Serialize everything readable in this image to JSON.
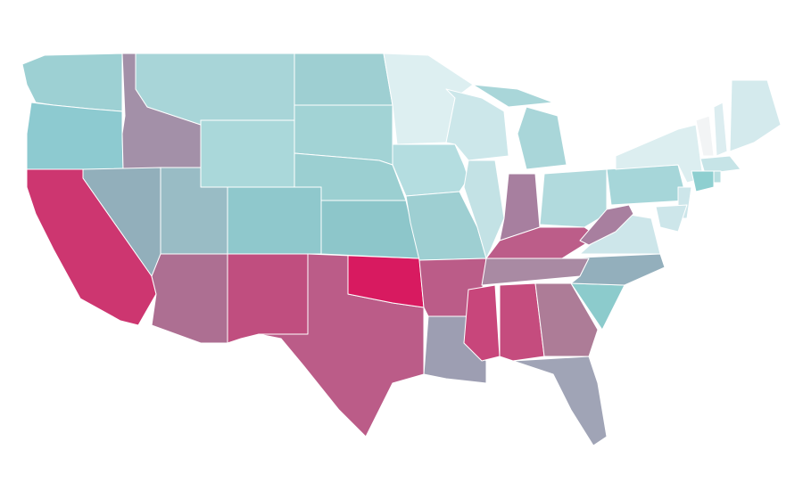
{
  "map": {
    "fills": [
      "#9dd0d3",
      "#8dcad0",
      "#a390a8",
      "#a8d5d8",
      "#aad8da",
      "#9ecfd2",
      "#a2d3d5",
      "#9bcfd1",
      "#8fc8cc",
      "#99bcc5",
      "#92afbb",
      "#cd3670",
      "#ad6f92",
      "#c04e7f",
      "#bb5c88",
      "#d81a60",
      "#8dc6ca",
      "#ddeff1",
      "#b4dde0",
      "#9ecfd2",
      "#bb5c88",
      "#9d9eb2",
      "#cce7ea",
      "#c3e2e5",
      "#a9d6d9",
      "#a9d6d9",
      "#a77f9f",
      "#b1dadd",
      "#bc5d89",
      "#a98aa3",
      "#c8467b",
      "#c54c7e",
      "#ad7c97",
      "#a0a4b6",
      "#8ccbcc",
      "#93afbc",
      "#cde6ea",
      "#a87f9f",
      "#a6d6d9",
      "#dceef0",
      "#f2f4f5",
      "#dcedf0",
      "#d4eaed",
      "#c6e4e7",
      "#8ecfd0",
      "#b9dfe1",
      "#cde6ea",
      "#cde6ea"
    ]
  }
}
